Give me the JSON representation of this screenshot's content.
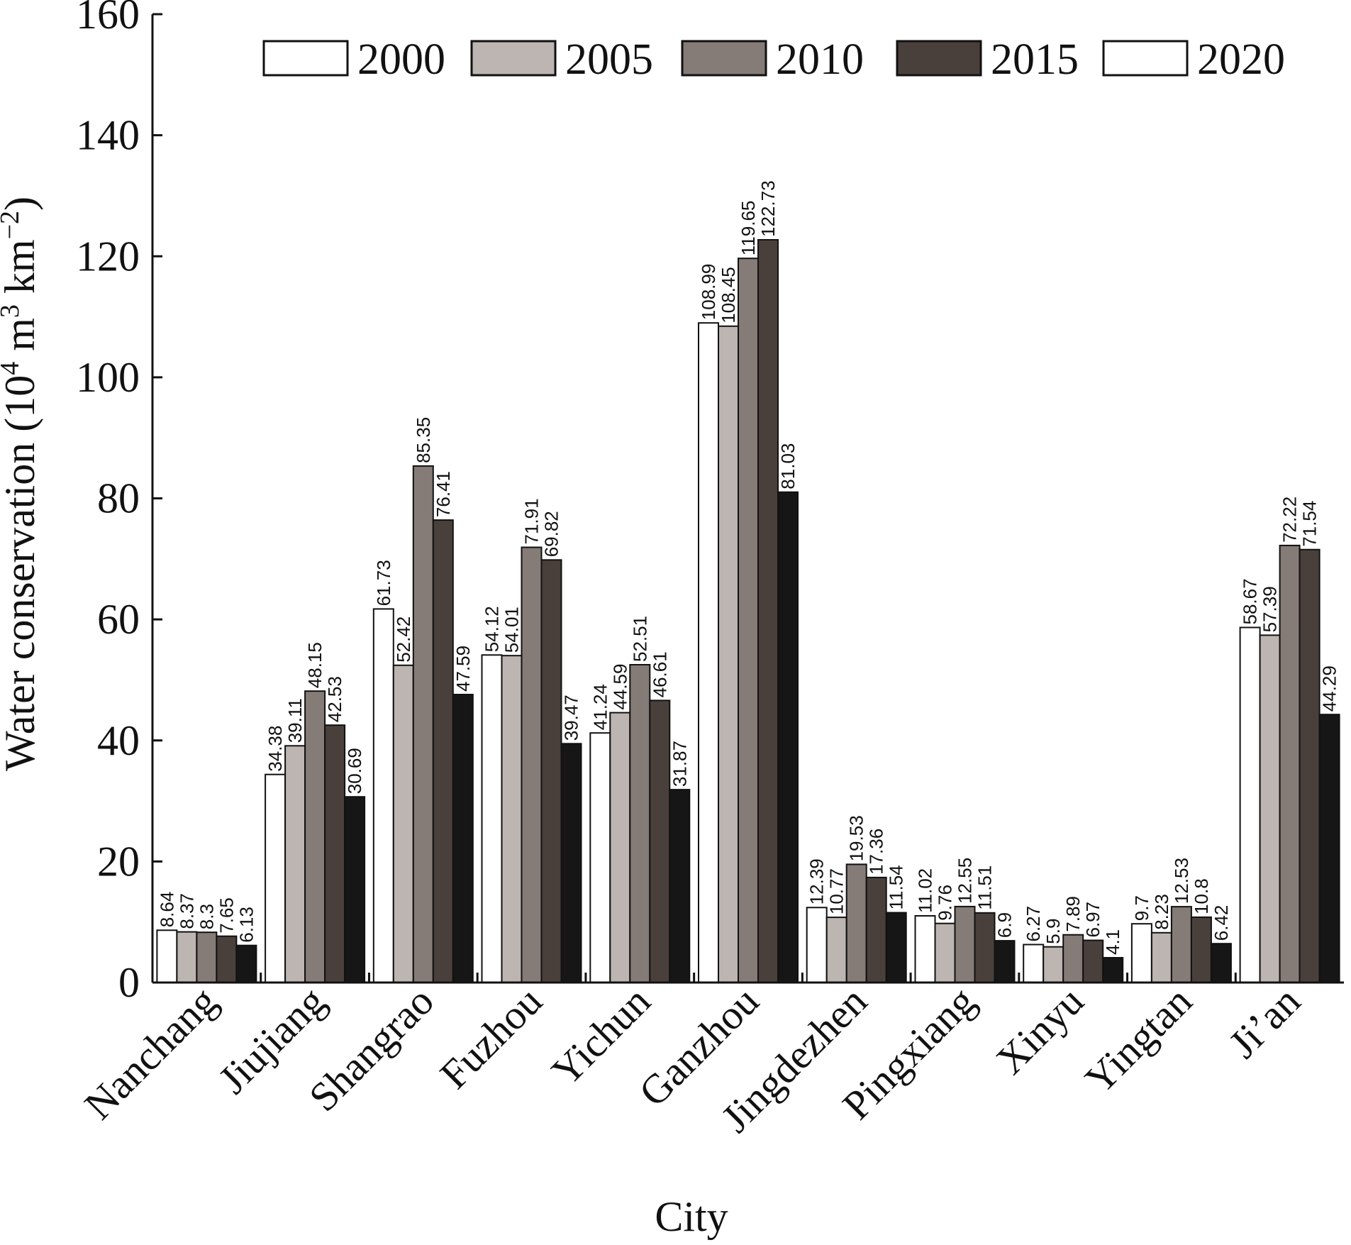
{
  "chart_data": {
    "type": "bar",
    "xlabel": "City",
    "ylabel": {
      "prefix": "Water conservation (10",
      "sup1": "4",
      "mid": " m",
      "sup2": "3",
      "mid2": " km",
      "sup3": "−2",
      "suffix": ")"
    },
    "ylim": [
      0,
      160
    ],
    "yticks": [
      0,
      20,
      40,
      60,
      80,
      100,
      120,
      140,
      160
    ],
    "grid": false,
    "legend_position": "top",
    "categories": [
      "Nanchang",
      "Jiujiang",
      "Shangrao",
      "Fuzhou",
      "Yichun",
      "Ganzhou",
      "Jingdezhen",
      "Pingxiang",
      "Xinyu",
      "Yingtan",
      "Ji’an"
    ],
    "series": [
      {
        "name": "2000",
        "color": "#ffffff",
        "values": [
          8.64,
          34.38,
          61.73,
          54.12,
          41.24,
          108.99,
          12.39,
          11.02,
          6.27,
          9.7,
          58.67
        ]
      },
      {
        "name": "2005",
        "color": "#bcb5b1",
        "values": [
          8.37,
          39.11,
          52.42,
          54.01,
          44.59,
          108.45,
          10.77,
          9.76,
          5.9,
          8.23,
          57.39
        ]
      },
      {
        "name": "2010",
        "color": "#857b77",
        "values": [
          8.3,
          48.15,
          85.35,
          71.91,
          52.51,
          119.65,
          19.53,
          12.55,
          7.89,
          12.53,
          72.22
        ]
      },
      {
        "name": "2015",
        "color": "#4a403b",
        "values": [
          7.65,
          42.53,
          76.41,
          69.82,
          46.61,
          122.73,
          17.36,
          11.51,
          6.97,
          10.8,
          71.54
        ]
      },
      {
        "name": "2020",
        "color": "#161616",
        "legend_color": "#ffffff",
        "values": [
          6.13,
          30.69,
          47.59,
          39.47,
          31.87,
          81.03,
          11.54,
          6.9,
          4.1,
          6.42,
          44.29
        ]
      }
    ]
  }
}
